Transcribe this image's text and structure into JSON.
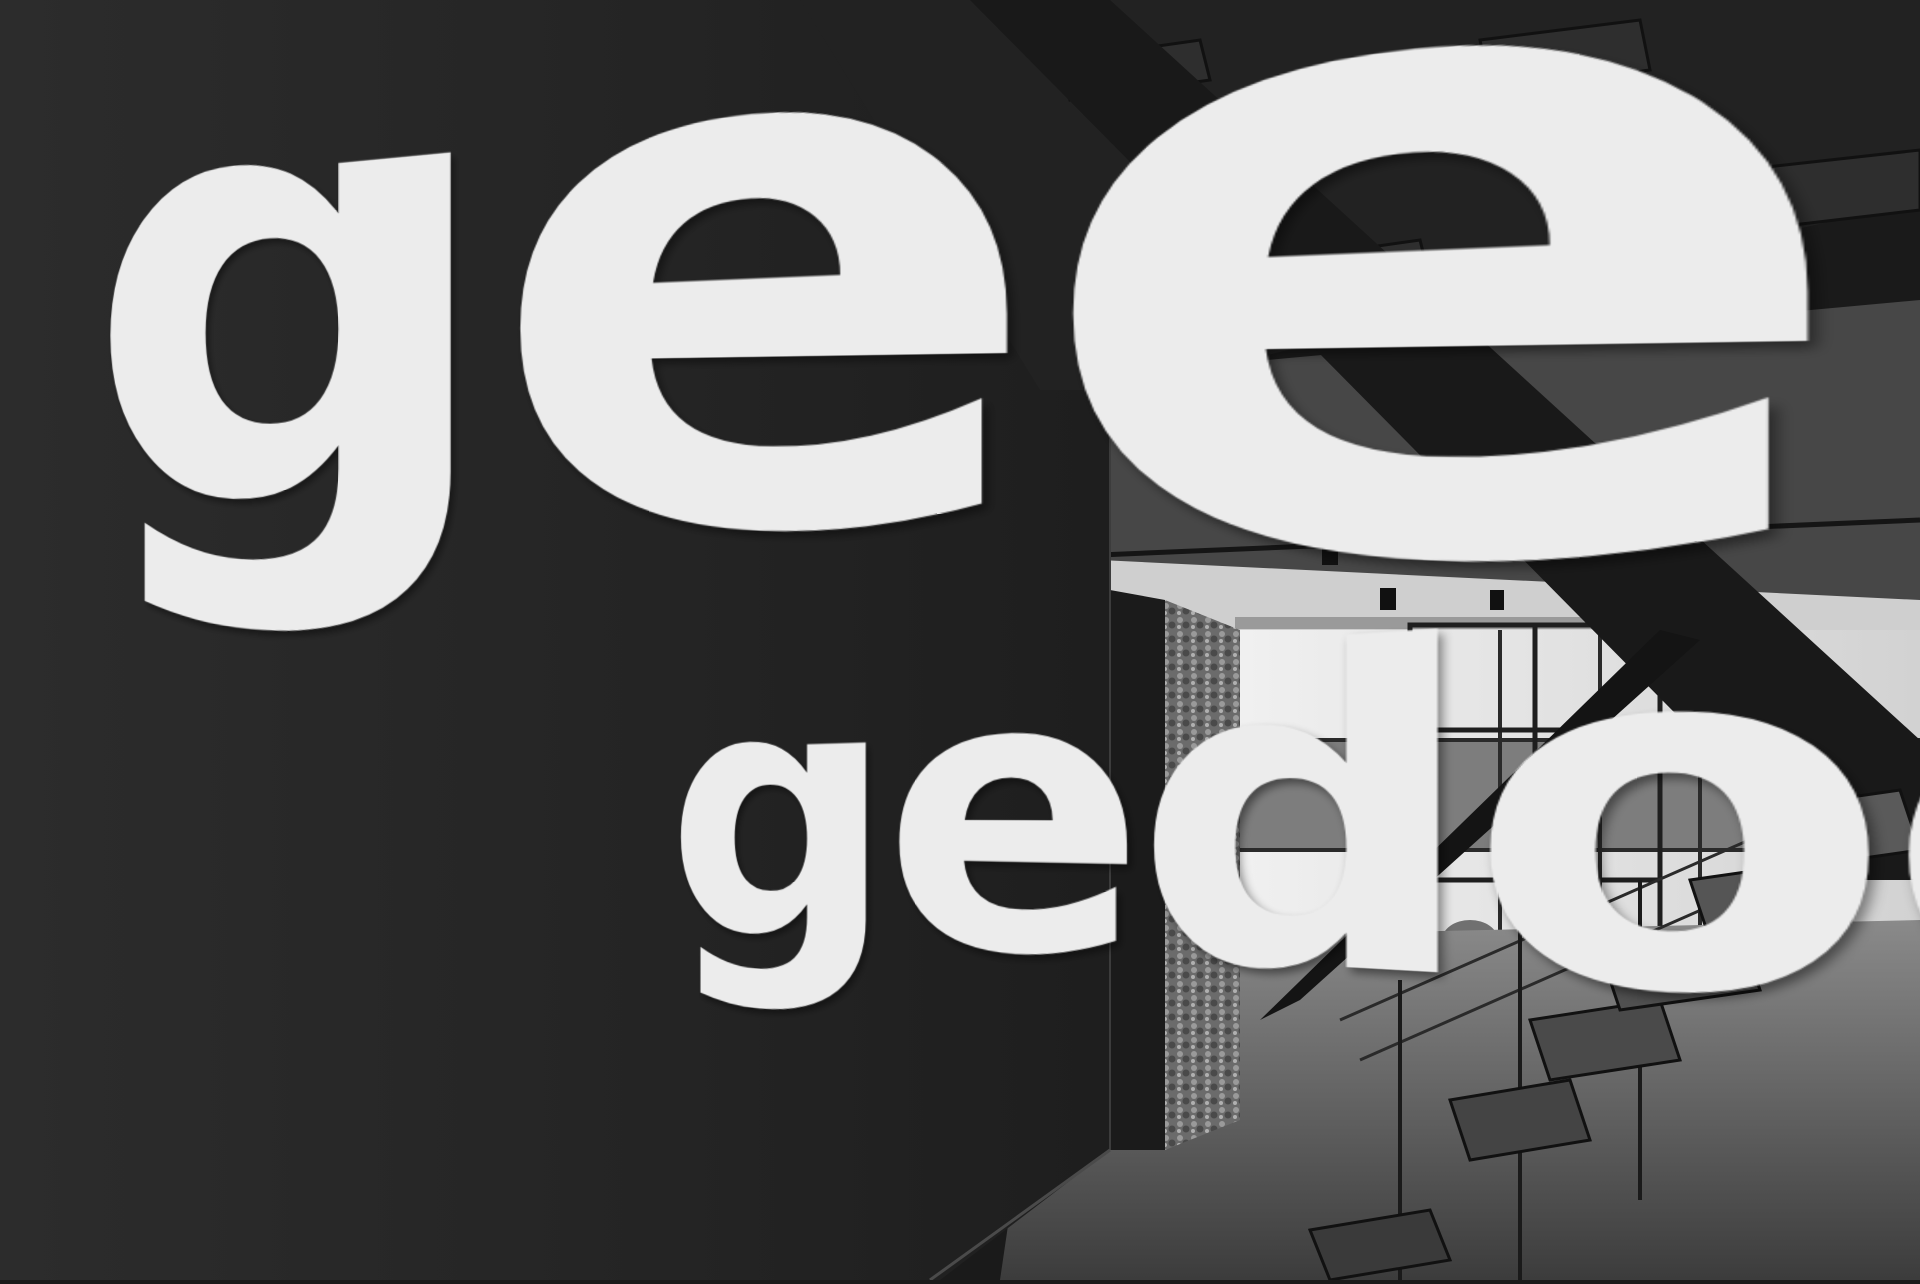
{
  "wall_lettering": {
    "line_1": "geen",
    "line_2": "gedoe."
  },
  "colors": {
    "wall": "#262626",
    "letters": "#ececec",
    "ceiling": "#3a3a3a",
    "window_light": "#e6e6e6",
    "floor": "#5a5a5a",
    "steel": "#1c1c1c"
  }
}
